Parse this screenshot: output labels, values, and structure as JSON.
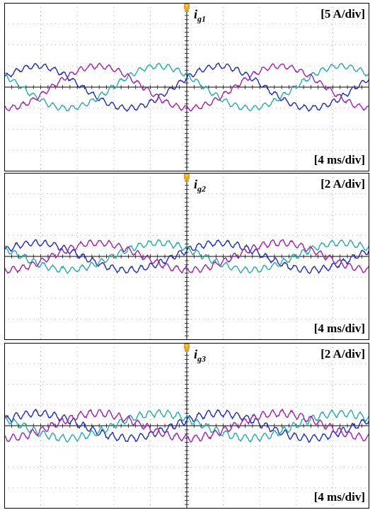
{
  "panels": [
    {
      "name": "panel-ig1",
      "signal_label": "i",
      "signal_sub": "g1",
      "amplitude_scale": "[5 A/div]",
      "time_scale": "[4 ms/div]"
    },
    {
      "name": "panel-ig2",
      "signal_label": "i",
      "signal_sub": "g2",
      "amplitude_scale": "[2 A/div]",
      "time_scale": "[4 ms/div]"
    },
    {
      "name": "panel-ig3",
      "signal_label": "i",
      "signal_sub": "g3",
      "amplitude_scale": "[2 A/div]",
      "time_scale": "[4 ms/div]"
    }
  ],
  "colors": {
    "phase_a": "#1f2bb0",
    "phase_b": "#2aa8a8",
    "phase_c": "#a020a8",
    "grid": "#9a9a9a",
    "axis": "#000000",
    "trigger": "#e8a020"
  },
  "chart_data": [
    {
      "type": "line",
      "title": "i_g1",
      "ylabel": "[5 A/div]",
      "xlabel": "[4 ms/div]",
      "divisions_x": 10,
      "divisions_y": 8,
      "x_range_div": [
        0,
        10
      ],
      "y_range_div": [
        -4,
        4
      ],
      "grid": true,
      "frequency_cycles_on_screen": 2,
      "series": [
        {
          "amplitude_div": 1.0,
          "phase_deg": 0,
          "ripple_div": 0.12
        },
        {
          "amplitude_div": 1.0,
          "phase_deg": 120,
          "ripple_div": 0.12
        },
        {
          "amplitude_div": 1.0,
          "phase_deg": 240,
          "ripple_div": 0.12
        }
      ]
    },
    {
      "type": "line",
      "title": "i_g2",
      "ylabel": "[2 A/div]",
      "xlabel": "[4 ms/div]",
      "divisions_x": 10,
      "divisions_y": 8,
      "x_range_div": [
        0,
        10
      ],
      "y_range_div": [
        -4,
        4
      ],
      "grid": true,
      "frequency_cycles_on_screen": 2,
      "series": [
        {
          "amplitude_div": 0.65,
          "phase_deg": 0,
          "ripple_div": 0.14
        },
        {
          "amplitude_div": 0.65,
          "phase_deg": 120,
          "ripple_div": 0.14
        },
        {
          "amplitude_div": 0.65,
          "phase_deg": 240,
          "ripple_div": 0.14
        }
      ]
    },
    {
      "type": "line",
      "title": "i_g3",
      "ylabel": "[2 A/div]",
      "xlabel": "[4 ms/div]",
      "divisions_x": 10,
      "divisions_y": 8,
      "x_range_div": [
        0,
        10
      ],
      "y_range_div": [
        -4,
        4
      ],
      "grid": true,
      "frequency_cycles_on_screen": 2,
      "series": [
        {
          "amplitude_div": 0.6,
          "phase_deg": 0,
          "ripple_div": 0.16
        },
        {
          "amplitude_div": 0.6,
          "phase_deg": 120,
          "ripple_div": 0.16
        },
        {
          "amplitude_div": 0.6,
          "phase_deg": 240,
          "ripple_div": 0.16
        }
      ]
    }
  ]
}
